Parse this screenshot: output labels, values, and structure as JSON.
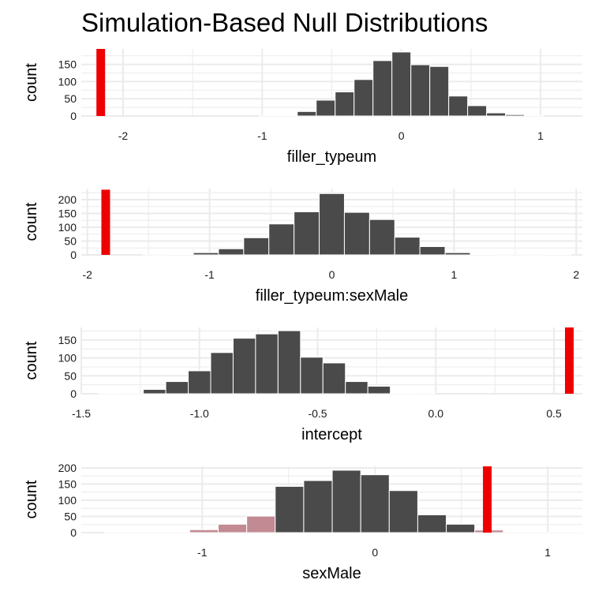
{
  "title": "Simulation-Based Null Distributions",
  "colors": {
    "bar": "#4a4a4a",
    "bar_stroke": "#ffffff",
    "observed": "#ee0000",
    "shade": "#c28a93",
    "grid": "#ebebeb",
    "background": "#ffffff"
  },
  "chart_data": [
    {
      "type": "bar",
      "title": "",
      "xlabel": "filler_typeum",
      "ylabel": "count",
      "xlim": [
        -2.3,
        1.3
      ],
      "ylim": [
        0,
        195
      ],
      "xticks": [
        -2,
        -1,
        0,
        1
      ],
      "xtick_labels": [
        "-2",
        "-1",
        "0",
        "1"
      ],
      "yticks": [
        0,
        50,
        100,
        150
      ],
      "ytick_labels": [
        "0",
        "50",
        "100",
        "150"
      ],
      "bin_width": 0.136,
      "bin_centers": [
        -0.952,
        -0.816,
        -0.68,
        -0.544,
        -0.408,
        -0.272,
        -0.136,
        0.0,
        0.136,
        0.272,
        0.408,
        0.544,
        0.68,
        0.816,
        0.952
      ],
      "values": [
        1,
        2,
        13,
        46,
        70,
        106,
        161,
        186,
        149,
        144,
        58,
        30,
        9,
        4,
        1
      ],
      "observed_statistic": -2.16,
      "observed_height": 195,
      "shade_direction": "none",
      "grid": true
    },
    {
      "type": "bar",
      "title": "",
      "xlabel": "filler_typeum:sexMale",
      "ylabel": "count",
      "xlim": [
        -2.05,
        2.05
      ],
      "ylim": [
        0,
        240
      ],
      "xticks": [
        -2,
        -1,
        0,
        1,
        2
      ],
      "xtick_labels": [
        "-2",
        "-1",
        "0",
        "1",
        "2"
      ],
      "yticks": [
        0,
        50,
        100,
        150,
        200
      ],
      "ytick_labels": [
        "0",
        "50",
        "100",
        "150",
        "200"
      ],
      "bin_width": 0.206,
      "bin_centers": [
        -1.442,
        -1.236,
        -1.03,
        -0.824,
        -0.618,
        -0.412,
        -0.206,
        0.0,
        0.206,
        0.412,
        0.618,
        0.824,
        1.03,
        1.236,
        1.442,
        1.648,
        1.854
      ],
      "values": [
        1,
        2,
        8,
        22,
        62,
        112,
        156,
        222,
        154,
        128,
        64,
        30,
        8,
        2,
        1,
        1,
        2
      ],
      "observed_statistic": -1.85,
      "observed_height": 236,
      "shade_direction": "none",
      "grid": true
    },
    {
      "type": "bar",
      "title": "",
      "xlabel": "intercept",
      "ylabel": "count",
      "xlim": [
        -1.5,
        0.62
      ],
      "ylim": [
        0,
        185
      ],
      "xticks": [
        -1.5,
        -1.0,
        -0.5,
        0.0,
        0.5
      ],
      "xtick_labels": [
        "-1.5",
        "-1.0",
        "-0.5",
        "0.0",
        "0.5"
      ],
      "yticks": [
        0,
        50,
        100,
        150
      ],
      "ytick_labels": [
        "0",
        "50",
        "100",
        "150"
      ],
      "bin_width": 0.095,
      "bin_centers": [
        -1.38,
        -1.285,
        -1.19,
        -1.095,
        -1.0,
        -0.905,
        -0.81,
        -0.715,
        -0.62,
        -0.525,
        -0.43,
        -0.335,
        -0.24,
        -0.145,
        -0.05
      ],
      "values": [
        2,
        1,
        12,
        34,
        64,
        115,
        155,
        167,
        176,
        102,
        86,
        34,
        21,
        2,
        1
      ],
      "observed_statistic": 0.565,
      "observed_height": 185,
      "shade_direction": "none",
      "grid": true
    },
    {
      "type": "bar",
      "title": "",
      "xlabel": "sexMale",
      "ylabel": "count",
      "xlim": [
        -1.7,
        1.2
      ],
      "ylim": [
        0,
        205
      ],
      "xticks": [
        -1,
        0,
        1
      ],
      "xtick_labels": [
        "-1",
        "0",
        "1"
      ],
      "yticks": [
        0,
        50,
        100,
        150,
        200
      ],
      "ytick_labels": [
        "0",
        "50",
        "100",
        "150",
        "200"
      ],
      "bin_width": 0.0825,
      "bin_centers": [
        -1.485,
        -1.32,
        -1.155,
        -0.99,
        -0.825,
        -0.66,
        -0.495,
        -0.33,
        -0.165,
        0.0,
        0.165,
        0.33,
        0.495,
        0.66,
        0.825,
        0.99,
        1.155
      ],
      "values": [
        1,
        1,
        1,
        9,
        26,
        51,
        143,
        161,
        193,
        179,
        130,
        55,
        26,
        8,
        2,
        1,
        1
      ],
      "bar_width_fraction": 2,
      "observed_statistic": 0.65,
      "observed_height": 205,
      "shade_direction": "both",
      "grid": true
    }
  ]
}
